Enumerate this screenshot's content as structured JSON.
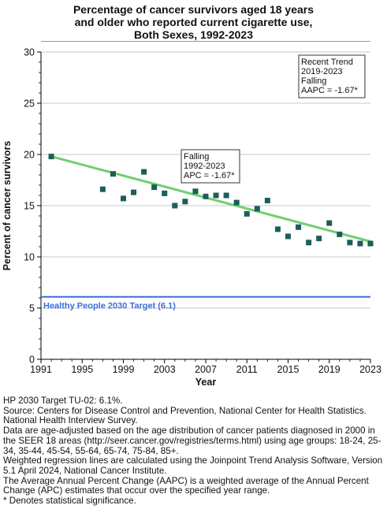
{
  "title_lines": [
    "Percentage of cancer survivors aged 18 years",
    "and older who reported current cigarette use,",
    "Both Sexes,  1992-2023"
  ],
  "chart_data": {
    "type": "scatter",
    "xlabel": "Year",
    "ylabel": "Percent of cancer survivors",
    "xlim": [
      1991,
      2023
    ],
    "ylim": [
      0,
      30
    ],
    "x_ticks": [
      1991,
      1995,
      1999,
      2003,
      2007,
      2011,
      2015,
      2019,
      2023
    ],
    "y_ticks": [
      0,
      5,
      10,
      15,
      20,
      25,
      30
    ],
    "grid": "horizontal",
    "series": [
      {
        "kind": "observed",
        "x": [
          1992,
          1997,
          1998,
          1999,
          2000,
          2001,
          2002,
          2003,
          2004,
          2005,
          2006,
          2007,
          2008,
          2009,
          2010,
          2011,
          2012,
          2013,
          2014,
          2015,
          2016,
          2017,
          2018,
          2019,
          2020,
          2021,
          2022,
          2023
        ],
        "y": [
          19.8,
          16.6,
          18.1,
          15.7,
          16.3,
          18.3,
          16.8,
          16.2,
          15.0,
          15.4,
          16.4,
          15.9,
          16.0,
          16.0,
          15.3,
          14.2,
          14.7,
          15.5,
          12.7,
          12.0,
          12.9,
          11.4,
          11.8,
          13.3,
          12.2,
          11.4,
          11.3,
          11.3
        ],
        "color": "#1b5e5a"
      },
      {
        "kind": "trend",
        "x": [
          1992,
          2023
        ],
        "y": [
          19.8,
          11.5
        ],
        "color": "#6fcf6f"
      }
    ],
    "target_line": {
      "value": 6.1,
      "label": "Healthy People 2030 Target (6.1)",
      "color": "#3a6fd8"
    },
    "annotations": [
      {
        "lines": [
          "Falling",
          "1992-2023",
          "APC = -1.67*"
        ]
      },
      {
        "lines": [
          "Recent Trend",
          "2019-2023",
          "Falling",
          "AAPC = -1.67*"
        ]
      }
    ]
  },
  "footnotes": [
    "HP 2030 Target TU-02: 6.1%.",
    "Source: Centers for Disease Control and Prevention, National Center for Health Statistics. National Health Interview Survey.",
    "Data are age-adjusted based on the age distribution of cancer patients diagnosed in 2000 in the SEER 18 areas (http://seer.cancer.gov/registries/terms.html) using age groups: 18-24, 25-34, 35-44, 45-54, 55-64, 65-74, 75-84, 85+.",
    "Weighted regression lines are calculated using the Joinpoint Trend Analysis Software, Version 5.1 April 2024, National Cancer Institute.",
    "The Average Annual Percent Change (AAPC) is a weighted average of the Annual Percent Change (APC) estimates that occur over the specified year range.",
    "* Denotes statistical significance."
  ]
}
